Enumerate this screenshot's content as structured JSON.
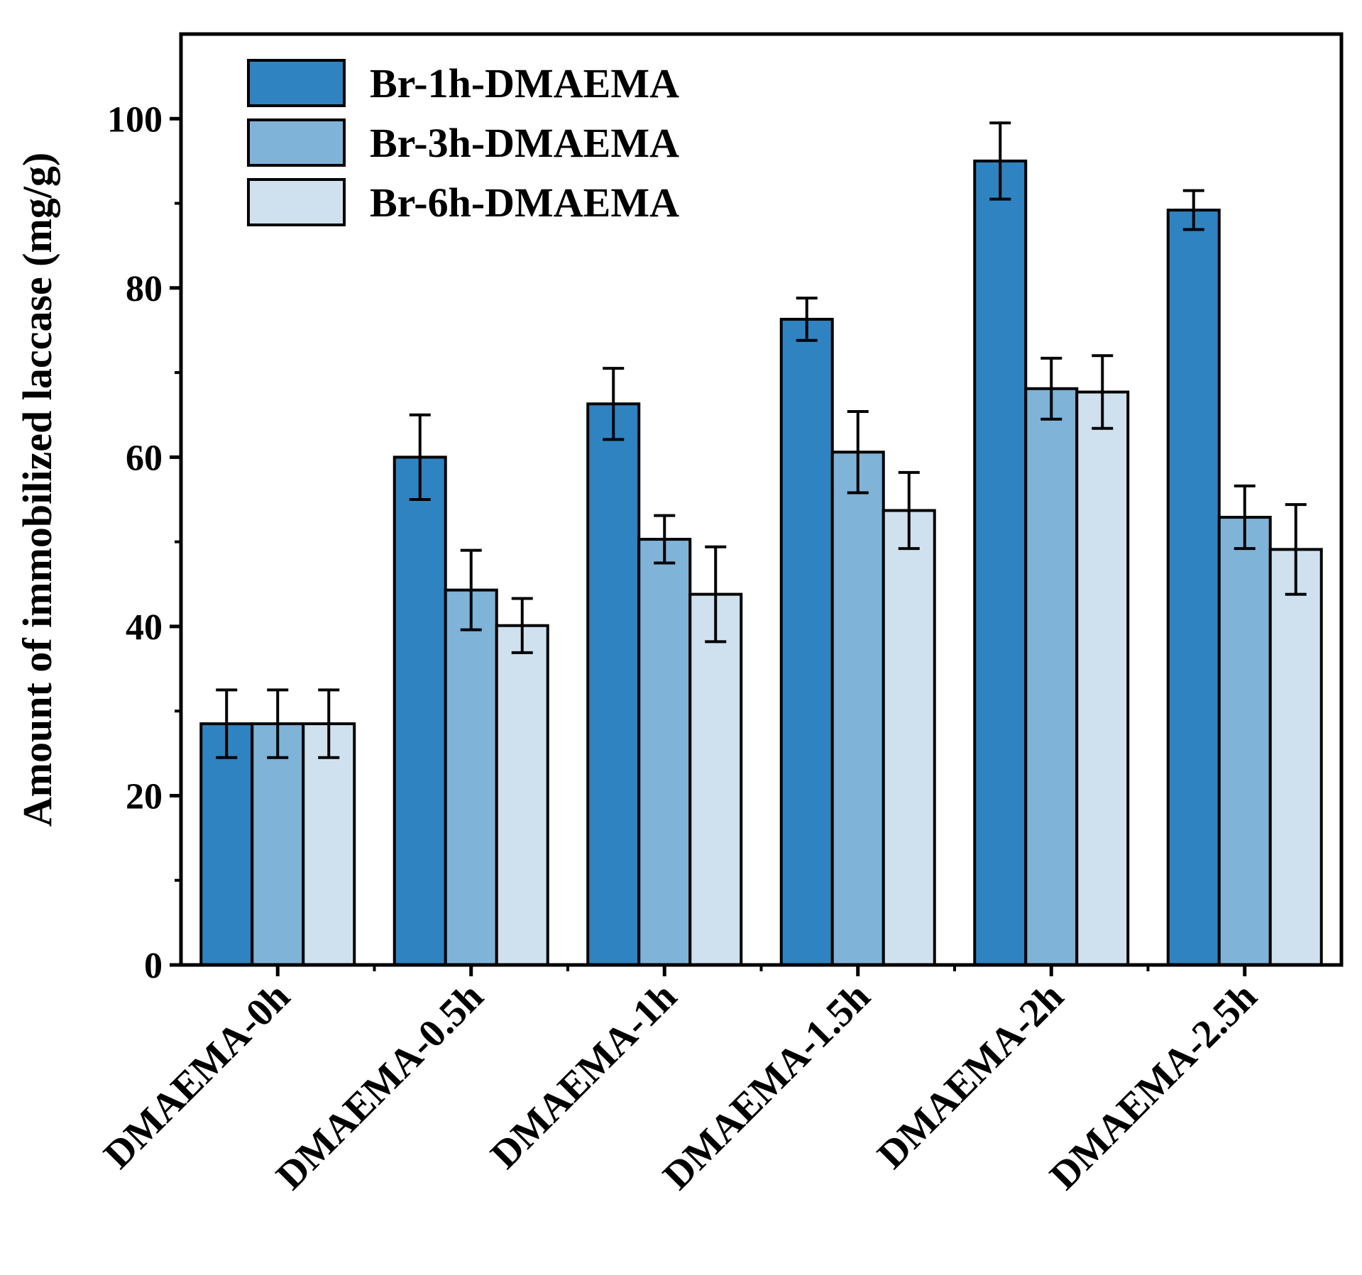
{
  "chart_data": {
    "type": "bar",
    "title": "",
    "xlabel": "",
    "ylabel": "Amount of immobilized laccase (mg/g)",
    "ylim": [
      0,
      110
    ],
    "yticks": [
      0,
      20,
      40,
      60,
      80,
      100
    ],
    "yticks_labels": [
      "0",
      "20",
      "40",
      "60",
      "80",
      "100"
    ],
    "categories": [
      "DMAEMA-0h",
      "DMAEMA-0.5h",
      "DMAEMA-1h",
      "DMAEMA-1.5h",
      "DMAEMA-2h",
      "DMAEMA-2.5h"
    ],
    "series": [
      {
        "name": "Br-1h-DMAEMA",
        "color": "#2f83c0",
        "values": [
          28.5,
          60.0,
          66.3,
          76.3,
          95.0,
          89.2
        ],
        "errors": [
          4.0,
          5.0,
          4.2,
          2.5,
          4.5,
          2.3
        ]
      },
      {
        "name": "Br-3h-DMAEMA",
        "color": "#7fb3d8",
        "values": [
          28.5,
          44.3,
          50.3,
          60.6,
          68.1,
          52.9
        ],
        "errors": [
          4.0,
          4.7,
          2.8,
          4.8,
          3.6,
          3.7
        ]
      },
      {
        "name": "Br-6h-DMAEMA",
        "color": "#cfe1ee",
        "values": [
          28.5,
          40.1,
          43.8,
          53.7,
          67.7,
          49.1
        ],
        "errors": [
          4.0,
          3.2,
          5.6,
          4.5,
          4.3,
          5.3
        ]
      }
    ],
    "legend_position": "top-left",
    "grid": false
  }
}
